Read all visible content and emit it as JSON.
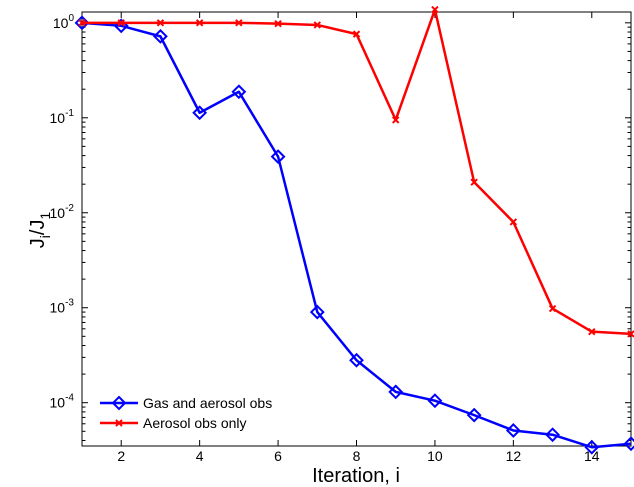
{
  "chart_data": {
    "type": "line",
    "title": "",
    "xlabel": "Iteration, i",
    "ylabel_main": "J",
    "ylabel_sub1": "i",
    "ylabel_slash": "/J",
    "ylabel_sub2": "1",
    "xlim": [
      1,
      15
    ],
    "ylim": [
      3.5e-05,
      1.3
    ],
    "yscale": "log",
    "grid": false,
    "legend_position": "bottom-left",
    "x_ticks": [
      2,
      4,
      6,
      8,
      10,
      12,
      14
    ],
    "y_ticks": [
      {
        "value": 1,
        "base": "10",
        "exp": "0"
      },
      {
        "value": 0.1,
        "base": "10",
        "exp": "-1"
      },
      {
        "value": 0.01,
        "base": "10",
        "exp": "-2"
      },
      {
        "value": 0.001,
        "base": "10",
        "exp": "-3"
      },
      {
        "value": 0.0001,
        "base": "10",
        "exp": "-4"
      }
    ],
    "x": [
      1,
      2,
      3,
      4,
      5,
      6,
      7,
      8,
      9,
      10,
      11,
      12,
      13,
      14,
      15
    ],
    "series": [
      {
        "name": "Gas and aerosol obs",
        "color": "#0000ff",
        "marker": "diamond",
        "values": [
          1.0,
          0.93,
          0.72,
          0.113,
          0.188,
          0.039,
          0.0009,
          0.00028,
          0.00013,
          0.000105,
          7.4e-05,
          5.1e-05,
          4.6e-05,
          3.4e-05,
          3.7e-05
        ]
      },
      {
        "name": "Aerosol obs only",
        "color": "#ff0000",
        "marker": "x",
        "values": [
          1.0,
          1.0,
          1.0,
          1.0,
          1.0,
          0.98,
          0.95,
          0.76,
          0.095,
          1.38,
          0.021,
          0.008,
          0.00098,
          0.00056,
          0.00053
        ]
      }
    ]
  }
}
